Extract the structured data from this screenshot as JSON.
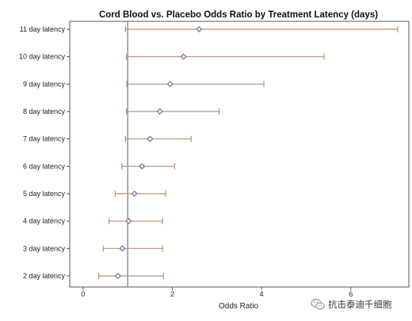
{
  "chart_data": {
    "type": "forest",
    "title": "Cord Blood vs. Placebo Odds Ratio by Treatment Latency (days)",
    "xlabel": "Odds Ratio",
    "ylabel": "",
    "xlim": [
      -0.3,
      7.3
    ],
    "xticks": [
      0,
      2,
      4,
      6
    ],
    "reference_line": 1,
    "grid": false,
    "rows": [
      {
        "label": "11 day latency",
        "estimate": 2.6,
        "lower": 0.95,
        "upper": 7.3
      },
      {
        "label": "10 day latency",
        "estimate": 2.25,
        "lower": 0.97,
        "upper": 5.4
      },
      {
        "label": "9 day latency",
        "estimate": 1.95,
        "lower": 0.98,
        "upper": 4.05
      },
      {
        "label": "8 day latency",
        "estimate": 1.72,
        "lower": 0.97,
        "upper": 3.05
      },
      {
        "label": "7 day latency",
        "estimate": 1.5,
        "lower": 0.95,
        "upper": 2.42
      },
      {
        "label": "6 day latency",
        "estimate": 1.32,
        "lower": 0.87,
        "upper": 2.05
      },
      {
        "label": "5 day latency",
        "estimate": 1.15,
        "lower": 0.72,
        "upper": 1.85
      },
      {
        "label": "4 day latency",
        "estimate": 1.02,
        "lower": 0.58,
        "upper": 1.78
      },
      {
        "label": "3 day latency",
        "estimate": 0.88,
        "lower": 0.45,
        "upper": 1.78
      },
      {
        "label": "2 day latency",
        "estimate": 0.78,
        "lower": 0.35,
        "upper": 1.8
      }
    ],
    "colors": {
      "ci_line": "#b89070",
      "marker": "#7a6c9a",
      "reference_line": "#8a8a8a",
      "frame": "#555555"
    }
  },
  "watermark": {
    "text": "抗击泰迪千细胞",
    "icon": "wechat-icon"
  }
}
